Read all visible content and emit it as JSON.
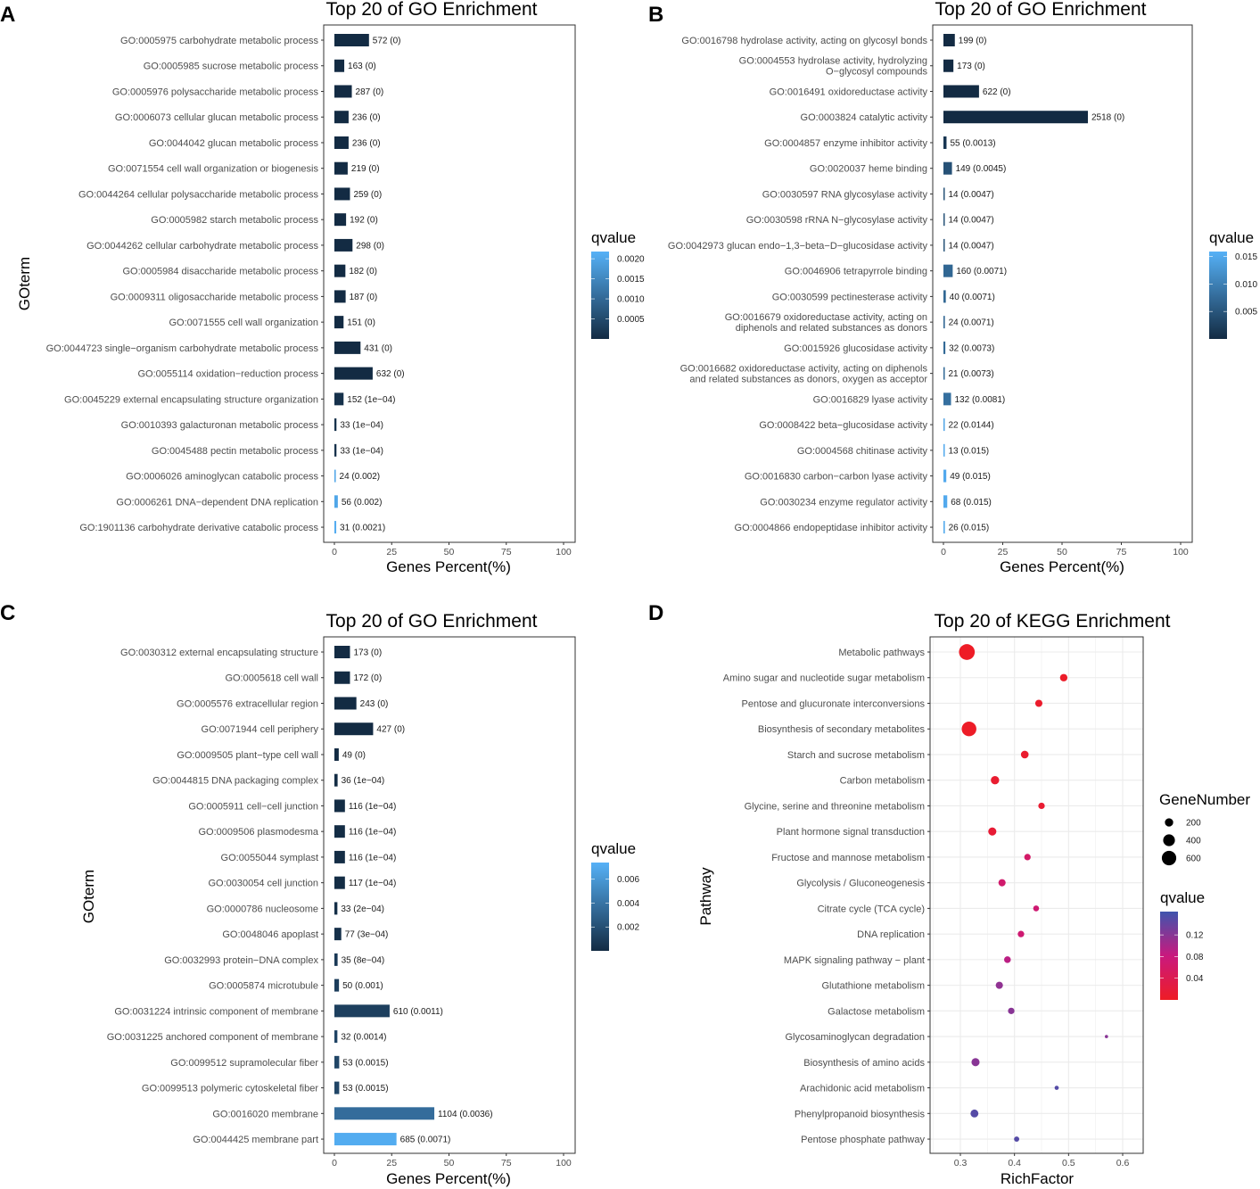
{
  "panel_letters": [
    "A",
    "B",
    "C",
    "D"
  ],
  "chart_data": [
    {
      "type": "bar",
      "panel": "A",
      "title": "Top 20 of GO Enrichment",
      "xlabel": "Genes Percent(%)",
      "ylabel": "GOterm",
      "xlim": [
        0,
        100
      ],
      "xticks": [
        0,
        25,
        50,
        75,
        100
      ],
      "legend_title": "qvalue",
      "legend_range": [
        0,
        0.00218
      ],
      "legend_ticks": [
        0.0005,
        0.001,
        0.0015,
        0.002
      ],
      "legend_tick_labels": [
        "0.0005",
        "0.0010",
        "0.0015",
        "0.0020"
      ],
      "colors": {
        "low": "#132B43",
        "high": "#56B1F7"
      },
      "categories": [
        "GO:0005975 carbohydrate metabolic process",
        "GO:0005985 sucrose metabolic process",
        "GO:0005976 polysaccharide metabolic process",
        "GO:0006073 cellular glucan metabolic process",
        "GO:0044042 glucan metabolic process",
        "GO:0071554 cell wall organization or biogenesis",
        "GO:0044264 cellular polysaccharide metabolic process",
        "GO:0005982 starch metabolic process",
        "GO:0044262 cellular carbohydrate metabolic process",
        "GO:0005984 disaccharide metabolic process",
        "GO:0009311 oligosaccharide metabolic process",
        "GO:0071555 cell wall organization",
        "GO:0044723 single−organism carbohydrate metabolic process",
        "GO:0055114 oxidation−reduction process",
        "GO:0045229 external encapsulating structure organization",
        "GO:0010393 galacturonan metabolic process",
        "GO:0045488 pectin metabolic process",
        "GO:0006026 aminoglycan catabolic process",
        "GO:0006261 DNA−dependent DNA replication",
        "GO:1901136 carbohydrate derivative catabolic process"
      ],
      "values": [
        15.1,
        4.3,
        7.6,
        6.2,
        6.2,
        5.8,
        6.8,
        5.1,
        7.9,
        4.8,
        4.9,
        4.0,
        11.4,
        16.7,
        4.0,
        0.9,
        0.9,
        0.6,
        1.5,
        0.8
      ],
      "qvalues": [
        0,
        0,
        0,
        0,
        0,
        0,
        0,
        0,
        0,
        0,
        0,
        0,
        0,
        0,
        0.0001,
        0.0001,
        0.0001,
        0.002,
        0.002,
        0.0021
      ],
      "data_labels": [
        "572 (0)",
        "163 (0)",
        "287 (0)",
        "236 (0)",
        "236 (0)",
        "219 (0)",
        "259 (0)",
        "192 (0)",
        "298 (0)",
        "182 (0)",
        "187 (0)",
        "151 (0)",
        "431 (0)",
        "632 (0)",
        "152 (1e−04)",
        "33 (1e−04)",
        "33 (1e−04)",
        "24 (0.002)",
        "56 (0.002)",
        "31 (0.0021)"
      ]
    },
    {
      "type": "bar",
      "panel": "B",
      "title": "Top 20 of GO Enrichment",
      "xlabel": "Genes Percent(%)",
      "ylabel": "",
      "xlim": [
        0,
        100
      ],
      "xticks": [
        0,
        25,
        50,
        75,
        100
      ],
      "legend_title": "qvalue",
      "legend_range": [
        0,
        0.0159
      ],
      "legend_ticks": [
        0.005,
        0.01,
        0.015
      ],
      "legend_tick_labels": [
        "0.005",
        "0.010",
        "0.015"
      ],
      "colors": {
        "low": "#132B43",
        "high": "#56B1F7"
      },
      "categories": [
        "GO:0016798 hydrolase activity, acting on glycosyl bonds",
        "GO:0004553 hydrolase activity, hydrolyzing\nO−glycosyl compounds",
        "GO:0016491 oxidoreductase activity",
        "GO:0003824 catalytic activity",
        "GO:0004857 enzyme inhibitor activity",
        "GO:0020037 heme binding",
        "GO:0030597 RNA glycosylase activity",
        "GO:0030598 rRNA N−glycosylase activity",
        "GO:0042973 glucan endo−1,3−beta−D−glucosidase activity",
        "GO:0046906 tetrapyrrole binding",
        "GO:0030599 pectinesterase activity",
        "GO:0016679 oxidoreductase activity, acting on\ndiphenols and related substances as donors",
        "GO:0015926 glucosidase activity",
        "GO:0016682 oxidoreductase activity, acting on diphenols\nand related substances as donors, oxygen as acceptor",
        "GO:0016829 lyase activity",
        "GO:0008422 beta−glucosidase activity",
        "GO:0004568 chitinase activity",
        "GO:0016830 carbon−carbon lyase activity",
        "GO:0030234 enzyme regulator activity",
        "GO:0004866 endopeptidase inhibitor activity"
      ],
      "values": [
        4.8,
        4.2,
        15.0,
        60.9,
        1.3,
        3.6,
        0.34,
        0.34,
        0.34,
        3.9,
        1.0,
        0.6,
        0.8,
        0.5,
        3.2,
        0.5,
        0.3,
        1.2,
        1.6,
        0.6
      ],
      "qvalues": [
        0,
        0,
        0,
        0,
        0.0013,
        0.0045,
        0.0047,
        0.0047,
        0.0047,
        0.0071,
        0.0071,
        0.0071,
        0.0073,
        0.0073,
        0.0081,
        0.0144,
        0.015,
        0.015,
        0.015,
        0.015
      ],
      "data_labels": [
        "199 (0)",
        "173 (0)",
        "622 (0)",
        "2518 (0)",
        "55 (0.0013)",
        "149 (0.0045)",
        "14 (0.0047)",
        "14 (0.0047)",
        "14 (0.0047)",
        "160 (0.0071)",
        "40 (0.0071)",
        "24 (0.0071)",
        "32 (0.0073)",
        "21 (0.0073)",
        "132 (0.0081)",
        "22 (0.0144)",
        "13 (0.015)",
        "49 (0.015)",
        "68 (0.015)",
        "26 (0.015)"
      ]
    },
    {
      "type": "bar",
      "panel": "C",
      "title": "Top 20 of GO Enrichment",
      "xlabel": "Genes Percent(%)",
      "ylabel": "GOterm",
      "xlim": [
        0,
        100
      ],
      "xticks": [
        0,
        25,
        50,
        75,
        100
      ],
      "legend_title": "qvalue",
      "legend_range": [
        0,
        0.0074
      ],
      "legend_ticks": [
        0.002,
        0.004,
        0.006
      ],
      "legend_tick_labels": [
        "0.002",
        "0.004",
        "0.006"
      ],
      "colors": {
        "low": "#132B43",
        "high": "#56B1F7"
      },
      "categories": [
        "GO:0030312 external encapsulating structure",
        "GO:0005618 cell wall",
        "GO:0005576 extracellular region",
        "GO:0071944 cell periphery",
        "GO:0009505 plant−type cell wall",
        "GO:0044815 DNA packaging complex",
        "GO:0005911 cell−cell junction",
        "GO:0009506 plasmodesma",
        "GO:0055044 symplast",
        "GO:0030054 cell junction",
        "GO:0000786 nucleosome",
        "GO:0048046 apoplast",
        "GO:0032993 protein−DNA complex",
        "GO:0005874 microtubule",
        "GO:0031224 intrinsic component of membrane",
        "GO:0031225 anchored component of membrane",
        "GO:0099512 supramolecular fiber",
        "GO:0099513 polymeric cytoskeletal fiber",
        "GO:0016020 membrane",
        "GO:0044425 membrane part"
      ],
      "values": [
        6.8,
        6.8,
        9.6,
        16.9,
        1.9,
        1.4,
        4.6,
        4.6,
        4.6,
        4.6,
        1.3,
        3.0,
        1.4,
        2.0,
        24.1,
        1.3,
        2.1,
        2.1,
        43.6,
        27.1
      ],
      "qvalues": [
        0,
        0,
        0,
        0,
        0,
        0.0001,
        0.0001,
        0.0001,
        0.0001,
        0.0001,
        0.0002,
        0.0003,
        0.0008,
        0.001,
        0.0011,
        0.0014,
        0.0015,
        0.0015,
        0.0036,
        0.0071
      ],
      "data_labels": [
        "173 (0)",
        "172 (0)",
        "243 (0)",
        "427 (0)",
        "49 (0)",
        "36 (1e−04)",
        "116 (1e−04)",
        "116 (1e−04)",
        "116 (1e−04)",
        "117 (1e−04)",
        "33 (2e−04)",
        "77 (3e−04)",
        "35 (8e−04)",
        "50 (0.001)",
        "610 (0.0011)",
        "32 (0.0014)",
        "53 (0.0015)",
        "53 (0.0015)",
        "1104 (0.0036)",
        "685 (0.0071)"
      ]
    },
    {
      "type": "scatter",
      "panel": "D",
      "title": "Top 20 of KEGG Enrichment",
      "xlabel": "RichFactor",
      "ylabel": "Pathway",
      "xlim": [
        0.245,
        0.64
      ],
      "xticks": [
        0.3,
        0.4,
        0.5,
        0.6
      ],
      "xtick_labels": [
        "0.3",
        "0.4",
        "0.5",
        "0.6"
      ],
      "grid": true,
      "size_legend_title": "GeneNumber",
      "size_legend": [
        200,
        400,
        600
      ],
      "size_legend_labels": [
        "200",
        "400",
        "600"
      ],
      "legend_title": "qvalue",
      "legend_range": [
        0,
        0.163
      ],
      "legend_ticks": [
        0.04,
        0.08,
        0.12
      ],
      "legend_tick_labels": [
        "0.04",
        "0.08",
        "0.12"
      ],
      "colors": {
        "low": "#EE1C25",
        "mid": "#C9197E",
        "high": "#3F55AE"
      },
      "categories": [
        "Metabolic pathways",
        "Amino sugar and nucleotide sugar metabolism",
        "Pentose and glucuronate interconversions",
        "Biosynthesis of secondary metabolites",
        "Starch and sucrose metabolism",
        "Carbon metabolism",
        "Glycine, serine and threonine metabolism",
        "Plant hormone signal transduction",
        "Fructose and mannose metabolism",
        "Glycolysis / Gluconeogenesis",
        "Citrate cycle (TCA cycle)",
        "DNA replication",
        "MAPK signaling pathway − plant",
        "Glutathione metabolism",
        "Galactose metabolism",
        "Glycosaminoglycan degradation",
        "Biosynthesis of amino acids",
        "Arachidonic acid metabolism",
        "Phenylpropanoid biosynthesis",
        "Pentose phosphate pathway"
      ],
      "x": [
        0.312,
        0.491,
        0.445,
        0.316,
        0.419,
        0.364,
        0.45,
        0.359,
        0.424,
        0.377,
        0.44,
        0.412,
        0.387,
        0.372,
        0.394,
        0.57,
        0.328,
        0.478,
        0.326,
        0.404
      ],
      "gene_number": [
        720,
        160,
        150,
        620,
        170,
        200,
        120,
        190,
        120,
        150,
        100,
        120,
        130,
        150,
        120,
        30,
        190,
        50,
        180,
        80
      ],
      "qvalues": [
        0.001,
        0.004,
        0.006,
        0.002,
        0.008,
        0.01,
        0.012,
        0.015,
        0.06,
        0.065,
        0.07,
        0.07,
        0.09,
        0.115,
        0.12,
        0.12,
        0.12,
        0.15,
        0.15,
        0.15
      ]
    }
  ]
}
